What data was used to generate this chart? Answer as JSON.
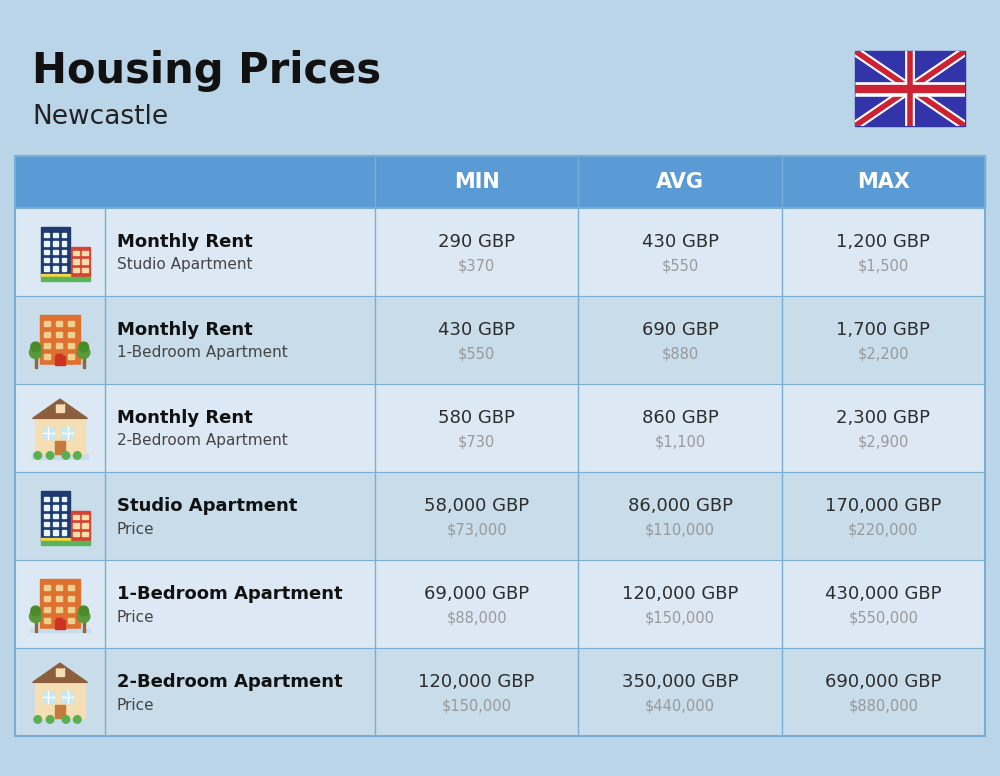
{
  "title": "Housing Prices",
  "subtitle": "Newcastle",
  "background_color": "#bad4e8",
  "header_bg_color": "#5b9bd5",
  "header_text_color": "#ffffff",
  "row_bg_colors": [
    "#dce9f5",
    "#c8dced"
  ],
  "col_header_labels": [
    "MIN",
    "AVG",
    "MAX"
  ],
  "rows": [
    {
      "bold_label": "Monthly Rent",
      "sub_label": "Studio Apartment",
      "min_gbp": "290 GBP",
      "min_usd": "$370",
      "avg_gbp": "430 GBP",
      "avg_usd": "$550",
      "max_gbp": "1,200 GBP",
      "max_usd": "$1,500",
      "icon_type": "studio_blue"
    },
    {
      "bold_label": "Monthly Rent",
      "sub_label": "1-Bedroom Apartment",
      "min_gbp": "430 GBP",
      "min_usd": "$550",
      "avg_gbp": "690 GBP",
      "avg_usd": "$880",
      "max_gbp": "1,700 GBP",
      "max_usd": "$2,200",
      "icon_type": "one_bed_orange"
    },
    {
      "bold_label": "Monthly Rent",
      "sub_label": "2-Bedroom Apartment",
      "min_gbp": "580 GBP",
      "min_usd": "$730",
      "avg_gbp": "860 GBP",
      "avg_usd": "$1,100",
      "max_gbp": "2,300 GBP",
      "max_usd": "$2,900",
      "icon_type": "two_bed_house"
    },
    {
      "bold_label": "Studio Apartment",
      "sub_label": "Price",
      "min_gbp": "58,000 GBP",
      "min_usd": "$73,000",
      "avg_gbp": "86,000 GBP",
      "avg_usd": "$110,000",
      "max_gbp": "170,000 GBP",
      "max_usd": "$220,000",
      "icon_type": "studio_blue"
    },
    {
      "bold_label": "1-Bedroom Apartment",
      "sub_label": "Price",
      "min_gbp": "69,000 GBP",
      "min_usd": "$88,000",
      "avg_gbp": "120,000 GBP",
      "avg_usd": "$150,000",
      "max_gbp": "430,000 GBP",
      "max_usd": "$550,000",
      "icon_type": "one_bed_orange"
    },
    {
      "bold_label": "2-Bedroom Apartment",
      "sub_label": "Price",
      "min_gbp": "120,000 GBP",
      "min_usd": "$150,000",
      "avg_gbp": "350,000 GBP",
      "avg_usd": "$440,000",
      "max_gbp": "690,000 GBP",
      "max_usd": "$880,000",
      "icon_type": "two_bed_house"
    }
  ],
  "usd_color": "#999999",
  "gbp_color": "#2d2d2d",
  "label_bold_color": "#111111",
  "label_sub_color": "#444444",
  "divider_color": "#7aadd4"
}
